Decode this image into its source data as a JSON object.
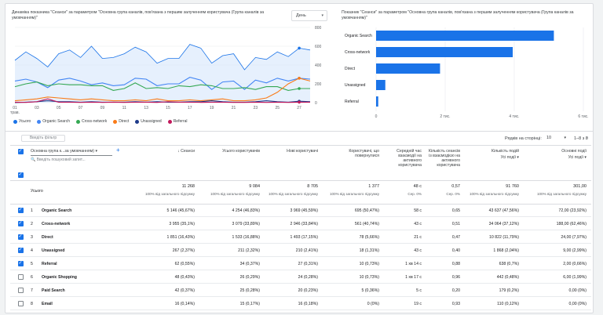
{
  "line_chart": {
    "title": "Динаміка показника \"Сеанси\" за параметром \"Основна група каналів, пов'язана з першим залученням користувача (Група каналів за умовчанням)\"",
    "granularity": "День",
    "y_ticks": [
      "800",
      "600",
      "400",
      "200",
      "0"
    ],
    "x_ticks": [
      "01\nтрав.",
      "03",
      "05",
      "07",
      "09",
      "11",
      "13",
      "15",
      "17",
      "19",
      "21",
      "23",
      "25",
      "27"
    ],
    "legend": [
      {
        "label": "Усього",
        "color": "#1a73e8",
        "marker": "diamond"
      },
      {
        "label": "Organic Search",
        "color": "#4285f4",
        "marker": "circle"
      },
      {
        "label": "Cross-network",
        "color": "#34a853",
        "marker": "square"
      },
      {
        "label": "Direct",
        "color": "#fa7b17",
        "marker": "diamond"
      },
      {
        "label": "Unassigned",
        "color": "#1e3a8a",
        "marker": "triangle-down"
      },
      {
        "label": "Referral",
        "color": "#c2185b",
        "marker": "triangle-up"
      }
    ]
  },
  "chart_data": [
    {
      "type": "line",
      "title": "Динаміка показника \"Сеанси\" за параметром \"Основна група каналів, пов'язана з першим залученням користувача (Група каналів за умовчанням)\"",
      "x": [
        "01",
        "02",
        "03",
        "04",
        "05",
        "06",
        "07",
        "08",
        "09",
        "10",
        "11",
        "12",
        "13",
        "14",
        "15",
        "16",
        "17",
        "18",
        "19",
        "20",
        "21",
        "22",
        "23",
        "24",
        "25",
        "26",
        "27",
        "28"
      ],
      "ylim": [
        0,
        800
      ],
      "series": [
        {
          "name": "Усього",
          "values": [
            450,
            540,
            470,
            380,
            520,
            560,
            480,
            600,
            470,
            480,
            520,
            590,
            540,
            420,
            470,
            470,
            620,
            580,
            420,
            500,
            520,
            350,
            480,
            460,
            540,
            490,
            580,
            560
          ]
        },
        {
          "name": "Organic Search",
          "values": [
            230,
            250,
            220,
            160,
            240,
            260,
            230,
            190,
            210,
            180,
            190,
            260,
            250,
            180,
            200,
            200,
            270,
            240,
            140,
            220,
            230,
            140,
            240,
            210,
            260,
            230,
            260,
            250
          ]
        },
        {
          "name": "Cross-network",
          "values": [
            170,
            200,
            220,
            180,
            200,
            190,
            190,
            180,
            180,
            130,
            150,
            210,
            150,
            160,
            150,
            180,
            170,
            190,
            180,
            150,
            150,
            160,
            140,
            170,
            170,
            130,
            150,
            150
          ]
        },
        {
          "name": "Direct",
          "values": [
            20,
            30,
            40,
            60,
            50,
            40,
            30,
            40,
            30,
            20,
            20,
            30,
            20,
            40,
            20,
            20,
            30,
            20,
            30,
            40,
            20,
            20,
            30,
            50,
            110,
            200,
            260,
            230
          ]
        },
        {
          "name": "Unassigned",
          "values": [
            0,
            5,
            10,
            20,
            10,
            10,
            5,
            10,
            5,
            5,
            5,
            10,
            5,
            10,
            5,
            5,
            10,
            10,
            20,
            10,
            5,
            5,
            10,
            20,
            10,
            5,
            15,
            10
          ]
        },
        {
          "name": "Referral",
          "values": [
            5,
            3,
            10,
            40,
            5,
            5,
            3,
            5,
            3,
            5,
            3,
            5,
            5,
            3,
            10,
            5,
            5,
            3,
            5,
            5,
            3,
            3,
            5,
            3,
            5,
            3,
            5,
            5
          ]
        }
      ]
    },
    {
      "type": "bar",
      "title": "Показник \"Сеанси\" за параметром \"Основна група каналів, пов'язана з першим залученням користувача (Група каналів за умовчанням)\"",
      "categories": [
        "Organic Search",
        "Cross-network",
        "Direct",
        "Unassigned",
        "Referral"
      ],
      "values": [
        5146,
        3955,
        1851,
        267,
        62
      ],
      "x_ticks": [
        "0",
        "2 тис.",
        "4 тис.",
        "6 тис."
      ],
      "xlim": [
        0,
        6000
      ]
    }
  ],
  "bar_chart": {
    "title": "Показник \"Сеанси\" за параметром \"Основна група каналів, пов'язана з першим залученням користувача (Група каналів за умовчанням)\"",
    "categories": [
      "Organic Search",
      "Cross-network",
      "Direct",
      "Unassigned",
      "Referral"
    ],
    "x_ticks": [
      "0",
      "2 тис.",
      "4 тис.",
      "6 тис."
    ],
    "color": "#1a73e8"
  },
  "toolbar": {
    "add_filter": "Введіть фільтр",
    "rows_label": "Рядків на сторінці:",
    "rows_value": "10",
    "range": "1–8 з 8"
  },
  "table": {
    "dimension_header": "Основна група к...за умовчанням)",
    "search_placeholder": "Введіть пошуковий запит...",
    "headers": [
      {
        "label": "↓ Сеанси"
      },
      {
        "label": "Усього користувачів"
      },
      {
        "label": "Нові користувачі"
      },
      {
        "label": "Користувачі, що повернулися"
      },
      {
        "label": "Середній час взаємодії на активного користувача"
      },
      {
        "label": "Кількість сеансів із взаємодією на активного користувача"
      },
      {
        "label": "Кількість подій",
        "sub": "Усі події ▾"
      },
      {
        "label": "Основні події",
        "sub": "Усі події ▾"
      }
    ],
    "totals_label": "Усього",
    "totals": [
      {
        "v": "11 268",
        "p": "100% від загального підсумку"
      },
      {
        "v": "9 084",
        "p": "100% від загального підсумку"
      },
      {
        "v": "8 705",
        "p": "100% від загального підсумку"
      },
      {
        "v": "1 377",
        "p": "100% від загального підсумку"
      },
      {
        "v": "48 с",
        "p": "Сер. 0%"
      },
      {
        "v": "0,57",
        "p": "Сер. 0%"
      },
      {
        "v": "91 760",
        "p": "100% від загального підсумку"
      },
      {
        "v": "301,00",
        "p": "100% від загального підсумку"
      }
    ],
    "rows": [
      {
        "n": "1",
        "name": "Organic Search",
        "checked": true,
        "c": [
          "5 146 (45,67%)",
          "4 254 (46,83%)",
          "3 969 (45,59%)",
          "695 (50,47%)",
          "58 с",
          "0,65",
          "43 637 (47,56%)",
          "72,00 (23,92%)"
        ]
      },
      {
        "n": "2",
        "name": "Cross-network",
        "checked": true,
        "c": [
          "3 955 (35,1%)",
          "3 079 (33,89%)",
          "2 946 (33,84%)",
          "561 (40,74%)",
          "43 с",
          "0,51",
          "34 064 (37,12%)",
          "188,00 (62,46%)"
        ]
      },
      {
        "n": "3",
        "name": "Direct",
        "checked": true,
        "c": [
          "1 851 (16,43%)",
          "1 533 (16,88%)",
          "1 493 (17,15%)",
          "78 (5,66%)",
          "21 с",
          "0,47",
          "10 822 (11,79%)",
          "24,00 (7,97%)"
        ]
      },
      {
        "n": "4",
        "name": "Unassigned",
        "checked": true,
        "c": [
          "267 (2,37%)",
          "211 (2,32%)",
          "210 (2,41%)",
          "18 (1,31%)",
          "43 с",
          "0,40",
          "1 868 (2,04%)",
          "9,00 (2,99%)"
        ]
      },
      {
        "n": "5",
        "name": "Referral",
        "checked": true,
        "c": [
          "62 (0,55%)",
          "34 (0,37%)",
          "27 (0,31%)",
          "10 (0,73%)",
          "1 хв 14 с",
          "0,88",
          "638 (0,7%)",
          "2,00 (0,66%)"
        ]
      },
      {
        "n": "6",
        "name": "Organic Shopping",
        "checked": false,
        "c": [
          "48 (0,43%)",
          "26 (0,29%)",
          "24 (0,28%)",
          "10 (0,73%)",
          "1 хв 17 с",
          "0,96",
          "442 (0,48%)",
          "6,00 (1,99%)"
        ]
      },
      {
        "n": "7",
        "name": "Paid Search",
        "checked": false,
        "c": [
          "42 (0,37%)",
          "25 (0,28%)",
          "20 (0,23%)",
          "5 (0,36%)",
          "5 с",
          "0,20",
          "179 (0,2%)",
          "0,00 (0%)"
        ]
      },
      {
        "n": "8",
        "name": "Email",
        "checked": false,
        "c": [
          "16 (0,14%)",
          "15 (0,17%)",
          "16 (0,18%)",
          "0 (0%)",
          "19 с",
          "0,93",
          "110 (0,12%)",
          "0,00 (0%)"
        ]
      }
    ]
  }
}
